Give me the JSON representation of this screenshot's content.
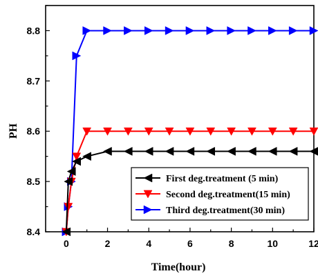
{
  "chart_data": {
    "type": "line",
    "xlabel": "Time(hour)",
    "ylabel": "PH",
    "xlim": [
      -1,
      12
    ],
    "ylim": [
      8.4,
      8.85
    ],
    "xticks": [
      "0",
      "2",
      "4",
      "6",
      "8",
      "10",
      "12"
    ],
    "xtick_values": [
      0,
      2,
      4,
      6,
      8,
      10,
      12
    ],
    "yticks": [
      "8.4",
      "8.5",
      "8.6",
      "8.7",
      "8.8"
    ],
    "ytick_values": [
      8.4,
      8.5,
      8.6,
      8.7,
      8.8
    ],
    "grid": false,
    "legend_position": "bottom-right",
    "series": [
      {
        "name": "First deg.treatment (5 min)",
        "color": "#000000",
        "marker": "triangle-left",
        "x": [
          0,
          0.1,
          0.25,
          0.5,
          1,
          2,
          3,
          4,
          5,
          6,
          7,
          8,
          9,
          10,
          11,
          12
        ],
        "y": [
          8.4,
          8.5,
          8.52,
          8.54,
          8.55,
          8.56,
          8.56,
          8.56,
          8.56,
          8.56,
          8.56,
          8.56,
          8.56,
          8.56,
          8.56,
          8.56
        ]
      },
      {
        "name": "Second deg.treatment(15 min)",
        "color": "#ff0000",
        "marker": "triangle-down",
        "x": [
          0,
          0.1,
          0.25,
          0.5,
          1,
          2,
          3,
          4,
          5,
          6,
          7,
          8,
          9,
          10,
          11,
          12
        ],
        "y": [
          8.4,
          8.45,
          8.5,
          8.55,
          8.6,
          8.6,
          8.6,
          8.6,
          8.6,
          8.6,
          8.6,
          8.6,
          8.6,
          8.6,
          8.6,
          8.6
        ]
      },
      {
        "name": "Third deg.treatment(30 min)",
        "color": "#0000ff",
        "marker": "triangle-right",
        "x": [
          0,
          0.1,
          0.25,
          0.5,
          1,
          2,
          3,
          4,
          5,
          6,
          7,
          8,
          9,
          10,
          11,
          12
        ],
        "y": [
          8.4,
          8.45,
          8.5,
          8.75,
          8.8,
          8.8,
          8.8,
          8.8,
          8.8,
          8.8,
          8.8,
          8.8,
          8.8,
          8.8,
          8.8,
          8.8
        ]
      }
    ]
  }
}
